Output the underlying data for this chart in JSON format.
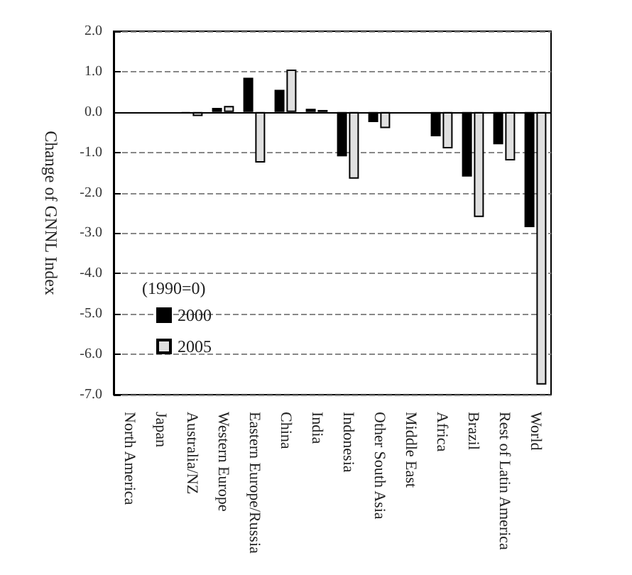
{
  "chart_data": {
    "type": "bar",
    "ylabel": "Change of GNNL Index",
    "legend_title": "(1990=0)",
    "categories": [
      "North America",
      "Japan",
      "Australia/NZ",
      "Western Europe",
      "Eastern Europe/Russia",
      "China",
      "India",
      "Indonesia",
      "Other South Asia",
      "Middle East",
      "Africa",
      "Brazil",
      "Rest of Latin America",
      "World"
    ],
    "series": [
      {
        "name": "2000",
        "color": "#000000",
        "values": [
          0,
          0,
          -0.03,
          0.1,
          0.85,
          0.55,
          0.08,
          -1.1,
          -0.25,
          0,
          -0.6,
          -1.6,
          -0.8,
          -2.85
        ]
      },
      {
        "name": "2005",
        "color": "#e0e0e0",
        "values": [
          0,
          0,
          -0.1,
          0.15,
          -1.25,
          1.05,
          0.05,
          -1.65,
          -0.4,
          0,
          -0.9,
          -2.6,
          -1.2,
          -6.75
        ]
      }
    ],
    "ylim": [
      -7,
      2
    ],
    "yticks": [
      {
        "value": -7,
        "label": "-7.0"
      },
      {
        "value": -6,
        "label": "-6.0"
      },
      {
        "value": -5,
        "label": "-5.0"
      },
      {
        "value": -4,
        "label": "-4.0"
      },
      {
        "value": -3,
        "label": "-3.0"
      },
      {
        "value": -2,
        "label": "-2.0"
      },
      {
        "value": -1,
        "label": "-1.0"
      },
      {
        "value": 0,
        "label": "0.0"
      },
      {
        "value": 1,
        "label": "1.0"
      },
      {
        "value": 2,
        "label": "2.0"
      }
    ],
    "grid": "y",
    "legend": "bottom left"
  }
}
